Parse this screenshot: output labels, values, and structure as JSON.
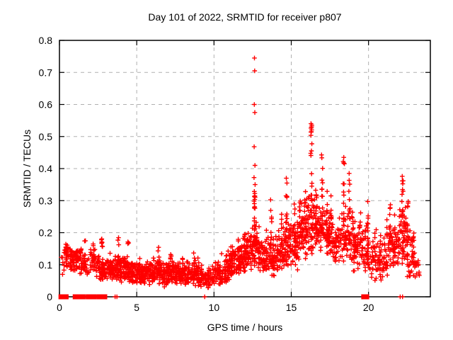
{
  "title": "Day 101 of 2022, SRMTID for receiver p807",
  "chart_data": {
    "type": "scatter",
    "title": "Day 101 of 2022, SRMTID for receiver p807",
    "xlabel": "GPS time / hours",
    "ylabel": "SRMTID / TECUs",
    "xlim": [
      0,
      24
    ],
    "ylim": [
      0,
      0.8
    ],
    "xticks": [
      0,
      5,
      10,
      15,
      20
    ],
    "xtick_labels": [
      "0",
      "5",
      "10",
      "15",
      "20"
    ],
    "yticks": [
      0,
      0.1,
      0.2,
      0.3,
      0.4,
      0.5,
      0.6,
      0.7,
      0.8
    ],
    "ytick_labels": [
      "0",
      "0.1",
      "0.2",
      "0.3",
      "0.4",
      "0.5",
      "0.6",
      "0.7",
      "0.8"
    ],
    "grid": true,
    "legend_position": "none",
    "marker": "plus",
    "point_color": "#ff0000",
    "grid_color": "#b0b0b0",
    "border_color": "#000000",
    "bands": [
      [
        0.05,
        0.35,
        8,
        0.05,
        0.17
      ],
      [
        0.35,
        0.7,
        26,
        0.08,
        0.175
      ],
      [
        0.7,
        1.0,
        20,
        0.07,
        0.155
      ],
      [
        1.0,
        1.3,
        24,
        0.08,
        0.16
      ],
      [
        1.3,
        1.6,
        16,
        0.06,
        0.145
      ],
      [
        1.6,
        2.0,
        12,
        0.06,
        0.13
      ],
      [
        2.0,
        2.3,
        20,
        0.07,
        0.165
      ],
      [
        2.3,
        2.6,
        20,
        0.05,
        0.14
      ],
      [
        2.6,
        3.0,
        42,
        0.045,
        0.12
      ],
      [
        3.0,
        3.5,
        48,
        0.05,
        0.125
      ],
      [
        3.5,
        4.0,
        48,
        0.05,
        0.13
      ],
      [
        4.0,
        4.5,
        52,
        0.045,
        0.14
      ],
      [
        4.5,
        5.0,
        52,
        0.04,
        0.115
      ],
      [
        5.0,
        5.5,
        52,
        0.04,
        0.11
      ],
      [
        5.5,
        6.0,
        52,
        0.035,
        0.115
      ],
      [
        6.0,
        6.5,
        52,
        0.035,
        0.125
      ],
      [
        6.5,
        7.0,
        52,
        0.03,
        0.115
      ],
      [
        7.0,
        7.5,
        52,
        0.04,
        0.12
      ],
      [
        7.5,
        8.0,
        52,
        0.04,
        0.11
      ],
      [
        8.0,
        8.5,
        48,
        0.035,
        0.12
      ],
      [
        8.5,
        9.0,
        46,
        0.03,
        0.125
      ],
      [
        9.0,
        9.5,
        42,
        0.03,
        0.11
      ],
      [
        9.5,
        10.0,
        38,
        0.02,
        0.1
      ],
      [
        10.0,
        10.5,
        42,
        0.03,
        0.115
      ],
      [
        10.5,
        11.0,
        48,
        0.04,
        0.14
      ],
      [
        11.0,
        11.5,
        52,
        0.05,
        0.17
      ],
      [
        11.5,
        12.0,
        56,
        0.06,
        0.19
      ],
      [
        12.0,
        12.5,
        56,
        0.08,
        0.22
      ],
      [
        12.5,
        13.0,
        56,
        0.08,
        0.25
      ],
      [
        13.0,
        13.5,
        50,
        0.07,
        0.21
      ],
      [
        13.5,
        14.0,
        46,
        0.06,
        0.19
      ],
      [
        14.0,
        14.5,
        50,
        0.07,
        0.21
      ],
      [
        14.5,
        15.0,
        50,
        0.08,
        0.24
      ],
      [
        15.0,
        15.5,
        50,
        0.08,
        0.26
      ],
      [
        15.5,
        16.0,
        50,
        0.1,
        0.3
      ],
      [
        16.0,
        16.5,
        50,
        0.12,
        0.33
      ],
      [
        16.5,
        17.0,
        50,
        0.13,
        0.3
      ],
      [
        17.0,
        17.5,
        46,
        0.12,
        0.28
      ],
      [
        17.5,
        18.0,
        42,
        0.1,
        0.25
      ],
      [
        18.0,
        18.5,
        42,
        0.1,
        0.28
      ],
      [
        18.5,
        19.0,
        42,
        0.1,
        0.3
      ],
      [
        19.0,
        19.5,
        38,
        0.07,
        0.25
      ],
      [
        19.5,
        20.0,
        42,
        0.06,
        0.25
      ],
      [
        20.0,
        20.5,
        38,
        0.05,
        0.22
      ],
      [
        20.5,
        21.0,
        32,
        0.04,
        0.18
      ],
      [
        21.0,
        21.5,
        42,
        0.06,
        0.25
      ],
      [
        21.5,
        22.0,
        42,
        0.08,
        0.24
      ],
      [
        22.0,
        22.5,
        46,
        0.09,
        0.3
      ],
      [
        22.5,
        23.0,
        38,
        0.06,
        0.22
      ],
      [
        23.0,
        23.3,
        14,
        0.05,
        0.15
      ]
    ],
    "streaks": [
      [
        0.45,
        0.09,
        0.175,
        10
      ],
      [
        0.75,
        0.08,
        0.16,
        8
      ],
      [
        1.1,
        0.08,
        0.16,
        9
      ],
      [
        1.4,
        0.07,
        0.15,
        7
      ],
      [
        1.65,
        0.08,
        0.185,
        8
      ],
      [
        2.2,
        0.09,
        0.165,
        8
      ],
      [
        2.75,
        0.07,
        0.185,
        10
      ],
      [
        3.3,
        0.06,
        0.15,
        7
      ],
      [
        3.8,
        0.07,
        0.185,
        8
      ],
      [
        4.45,
        0.06,
        0.18,
        8
      ],
      [
        5.2,
        0.05,
        0.13,
        6
      ],
      [
        6.4,
        0.05,
        0.155,
        8
      ],
      [
        7.2,
        0.05,
        0.15,
        6
      ],
      [
        8.0,
        0.05,
        0.13,
        6
      ],
      [
        8.7,
        0.04,
        0.145,
        6
      ],
      [
        10.9,
        0.05,
        0.16,
        6
      ],
      [
        11.6,
        0.07,
        0.19,
        7
      ],
      [
        12.0,
        0.08,
        0.2,
        7
      ],
      [
        12.62,
        0.12,
        0.335,
        24
      ],
      [
        13.7,
        0.15,
        0.31,
        10
      ],
      [
        14.4,
        0.1,
        0.27,
        8
      ],
      [
        14.7,
        0.1,
        0.37,
        12
      ],
      [
        15.2,
        0.12,
        0.32,
        9
      ],
      [
        15.55,
        0.12,
        0.3,
        8
      ],
      [
        15.9,
        0.12,
        0.33,
        9
      ],
      [
        16.3,
        0.25,
        0.54,
        20
      ],
      [
        16.6,
        0.2,
        0.38,
        10
      ],
      [
        17.0,
        0.22,
        0.47,
        12
      ],
      [
        17.3,
        0.15,
        0.35,
        8
      ],
      [
        17.6,
        0.13,
        0.32,
        8
      ],
      [
        18.4,
        0.2,
        0.44,
        12
      ],
      [
        18.75,
        0.16,
        0.39,
        10
      ],
      [
        19.15,
        0.1,
        0.3,
        7
      ],
      [
        19.45,
        0.1,
        0.28,
        7
      ],
      [
        19.95,
        0.14,
        0.31,
        10
      ],
      [
        20.8,
        0.06,
        0.2,
        6
      ],
      [
        21.4,
        0.1,
        0.3,
        9
      ],
      [
        21.7,
        0.1,
        0.26,
        7
      ],
      [
        22.2,
        0.12,
        0.375,
        16
      ],
      [
        22.55,
        0.08,
        0.3,
        9
      ],
      [
        22.9,
        0.06,
        0.2,
        6
      ]
    ],
    "outliers": [
      [
        12.62,
        0.745
      ],
      [
        12.63,
        0.705
      ],
      [
        12.61,
        0.6
      ],
      [
        12.64,
        0.575
      ],
      [
        12.6,
        0.468
      ],
      [
        12.65,
        0.41
      ],
      [
        12.59,
        0.372
      ],
      [
        12.66,
        0.35
      ],
      [
        16.28,
        0.54
      ],
      [
        16.32,
        0.53
      ],
      [
        16.3,
        0.515
      ],
      [
        14.68,
        0.37
      ],
      [
        14.72,
        0.355
      ],
      [
        18.4,
        0.435
      ],
      [
        18.44,
        0.415
      ],
      [
        22.18,
        0.376
      ],
      [
        22.24,
        0.362
      ]
    ],
    "zero_runs": [
      [
        0.03,
        0.5
      ],
      [
        0.95,
        1.15
      ],
      [
        1.33,
        1.6
      ],
      [
        1.79,
        2.32
      ],
      [
        2.5,
        3.0
      ],
      [
        19.62,
        19.95
      ]
    ],
    "zero_points": [
      3.6,
      3.72,
      9.4,
      22.05,
      22.2
    ]
  }
}
